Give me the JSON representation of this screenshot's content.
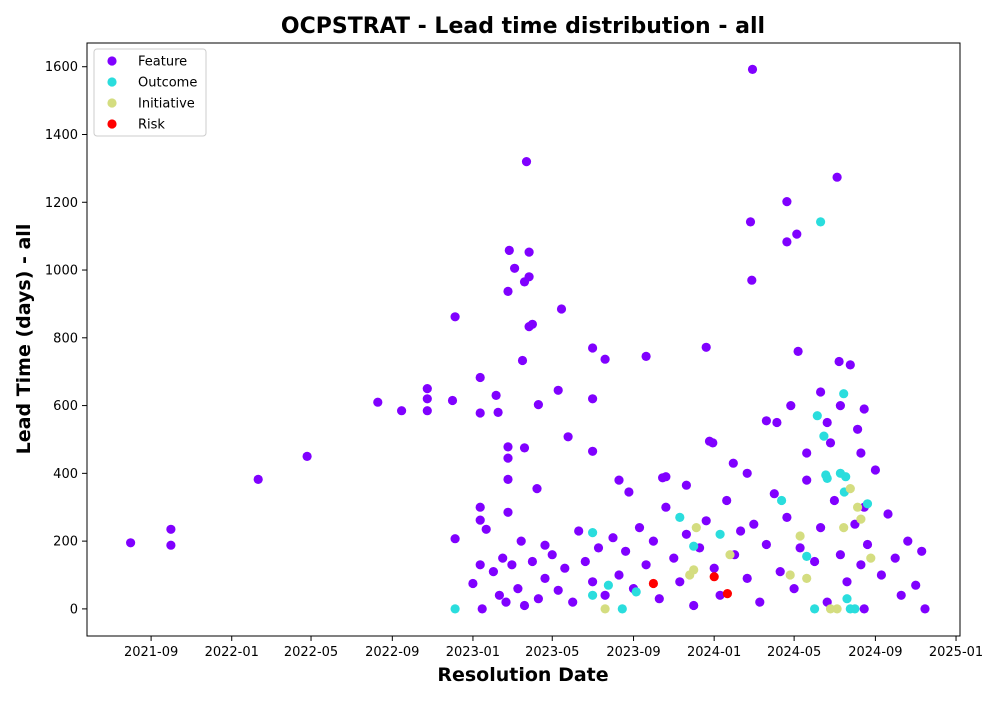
{
  "chart_data": {
    "type": "scatter",
    "title": "OCPSTRAT - Lead time distribution - all",
    "xlabel": "Resolution Date",
    "ylabel": "Lead Time (days) - all",
    "x_ticks": [
      "2021-09",
      "2022-01",
      "2022-05",
      "2022-09",
      "2023-01",
      "2023-05",
      "2023-09",
      "2024-01",
      "2024-05",
      "2024-09",
      "2025-01"
    ],
    "y_ticks": [
      0,
      200,
      400,
      600,
      800,
      1000,
      1200,
      1400,
      1600
    ],
    "xlim": [
      "2021-05-27",
      "2025-01-07"
    ],
    "ylim": [
      -80,
      1670
    ],
    "legend_position": "upper left",
    "series": [
      {
        "name": "Feature",
        "color": "#8000ff",
        "points": [
          [
            "2021-08-01",
            195
          ],
          [
            "2021-10-01",
            235
          ],
          [
            "2021-10-01",
            188
          ],
          [
            "2022-02-10",
            382
          ],
          [
            "2022-04-25",
            450
          ],
          [
            "2022-08-10",
            610
          ],
          [
            "2022-09-15",
            585
          ],
          [
            "2022-10-24",
            650
          ],
          [
            "2022-10-24",
            620
          ],
          [
            "2022-10-24",
            585
          ],
          [
            "2022-12-01",
            615
          ],
          [
            "2022-12-05",
            862
          ],
          [
            "2022-12-05",
            207
          ],
          [
            "2023-01-12",
            683
          ],
          [
            "2023-01-12",
            578
          ],
          [
            "2023-01-12",
            300
          ],
          [
            "2023-01-12",
            262
          ],
          [
            "2023-01-12",
            130
          ],
          [
            "2023-01-21",
            235
          ],
          [
            "2023-02-05",
            630
          ],
          [
            "2023-02-08",
            580
          ],
          [
            "2023-02-23",
            937
          ],
          [
            "2023-02-25",
            1058
          ],
          [
            "2023-02-23",
            478
          ],
          [
            "2023-02-23",
            445
          ],
          [
            "2023-02-23",
            382
          ],
          [
            "2023-02-23",
            285
          ],
          [
            "2023-03-05",
            1005
          ],
          [
            "2023-03-17",
            733
          ],
          [
            "2023-03-20",
            965
          ],
          [
            "2023-03-20",
            475
          ],
          [
            "2023-03-23",
            1320
          ],
          [
            "2023-03-27",
            1053
          ],
          [
            "2023-03-27",
            980
          ],
          [
            "2023-03-27",
            833
          ],
          [
            "2023-04-01",
            840
          ],
          [
            "2023-04-10",
            603
          ],
          [
            "2023-04-08",
            355
          ],
          [
            "2023-04-20",
            188
          ],
          [
            "2023-05-15",
            885
          ],
          [
            "2023-05-10",
            645
          ],
          [
            "2023-05-25",
            508
          ],
          [
            "2023-07-01",
            770
          ],
          [
            "2023-07-01",
            620
          ],
          [
            "2023-07-01",
            465
          ],
          [
            "2023-07-20",
            737
          ],
          [
            "2023-08-10",
            380
          ],
          [
            "2023-08-25",
            345
          ],
          [
            "2023-09-20",
            745
          ],
          [
            "2023-10-15",
            387
          ],
          [
            "2023-10-20",
            390
          ],
          [
            "2023-11-20",
            365
          ],
          [
            "2023-12-20",
            772
          ],
          [
            "2023-12-25",
            495
          ],
          [
            "2023-12-30",
            490
          ],
          [
            "2024-01-30",
            430
          ],
          [
            "2024-02-20",
            400
          ],
          [
            "2024-02-25",
            1142
          ],
          [
            "2024-02-27",
            970
          ],
          [
            "2024-02-28",
            1592
          ],
          [
            "2024-03-20",
            555
          ],
          [
            "2024-04-05",
            550
          ],
          [
            "2024-04-20",
            1202
          ],
          [
            "2024-04-20",
            1083
          ],
          [
            "2024-04-26",
            600
          ],
          [
            "2024-05-05",
            1106
          ],
          [
            "2024-05-07",
            760
          ],
          [
            "2024-05-20",
            460
          ],
          [
            "2024-06-10",
            640
          ],
          [
            "2024-06-20",
            550
          ],
          [
            "2024-06-25",
            490
          ],
          [
            "2024-07-05",
            1274
          ],
          [
            "2024-07-08",
            730
          ],
          [
            "2024-07-10",
            600
          ],
          [
            "2024-07-25",
            720
          ],
          [
            "2024-08-05",
            530
          ],
          [
            "2024-08-10",
            460
          ],
          [
            "2024-08-15",
            590
          ],
          [
            "2024-08-15",
            300
          ],
          [
            "2024-08-15",
            0
          ],
          [
            "2023-01-01",
            75
          ],
          [
            "2023-01-15",
            0
          ],
          [
            "2023-02-01",
            110
          ],
          [
            "2023-02-10",
            40
          ],
          [
            "2023-02-15",
            150
          ],
          [
            "2023-02-20",
            20
          ],
          [
            "2023-03-01",
            130
          ],
          [
            "2023-03-10",
            60
          ],
          [
            "2023-03-15",
            200
          ],
          [
            "2023-03-20",
            10
          ],
          [
            "2023-04-01",
            140
          ],
          [
            "2023-04-10",
            30
          ],
          [
            "2023-04-20",
            90
          ],
          [
            "2023-05-01",
            160
          ],
          [
            "2023-05-10",
            55
          ],
          [
            "2023-05-20",
            120
          ],
          [
            "2023-06-01",
            20
          ],
          [
            "2023-06-10",
            230
          ],
          [
            "2023-06-20",
            140
          ],
          [
            "2023-07-01",
            80
          ],
          [
            "2023-07-10",
            180
          ],
          [
            "2023-07-20",
            40
          ],
          [
            "2023-08-01",
            210
          ],
          [
            "2023-08-10",
            100
          ],
          [
            "2023-08-20",
            170
          ],
          [
            "2023-09-01",
            60
          ],
          [
            "2023-09-10",
            240
          ],
          [
            "2023-09-20",
            130
          ],
          [
            "2023-10-01",
            200
          ],
          [
            "2023-10-10",
            30
          ],
          [
            "2023-10-20",
            300
          ],
          [
            "2023-11-01",
            150
          ],
          [
            "2023-11-10",
            80
          ],
          [
            "2023-11-20",
            220
          ],
          [
            "2023-12-01",
            10
          ],
          [
            "2023-12-10",
            180
          ],
          [
            "2023-12-20",
            260
          ],
          [
            "2024-01-01",
            120
          ],
          [
            "2024-01-10",
            40
          ],
          [
            "2024-01-20",
            320
          ],
          [
            "2024-02-01",
            160
          ],
          [
            "2024-02-10",
            230
          ],
          [
            "2024-02-20",
            90
          ],
          [
            "2024-03-01",
            250
          ],
          [
            "2024-03-10",
            20
          ],
          [
            "2024-03-20",
            190
          ],
          [
            "2024-04-01",
            340
          ],
          [
            "2024-04-10",
            110
          ],
          [
            "2024-04-20",
            270
          ],
          [
            "2024-05-01",
            60
          ],
          [
            "2024-05-10",
            180
          ],
          [
            "2024-05-20",
            380
          ],
          [
            "2024-06-01",
            140
          ],
          [
            "2024-06-10",
            240
          ],
          [
            "2024-06-20",
            20
          ],
          [
            "2024-07-01",
            320
          ],
          [
            "2024-07-10",
            160
          ],
          [
            "2024-07-20",
            80
          ],
          [
            "2024-08-01",
            250
          ],
          [
            "2024-08-10",
            130
          ],
          [
            "2024-08-20",
            190
          ],
          [
            "2024-09-01",
            410
          ],
          [
            "2024-09-10",
            100
          ],
          [
            "2024-09-20",
            280
          ],
          [
            "2024-10-01",
            150
          ],
          [
            "2024-10-10",
            40
          ],
          [
            "2024-10-20",
            200
          ],
          [
            "2024-11-01",
            70
          ],
          [
            "2024-11-10",
            170
          ],
          [
            "2024-11-15",
            0
          ]
        ]
      },
      {
        "name": "Outcome",
        "color": "#2adddd",
        "points": [
          [
            "2022-12-05",
            0
          ],
          [
            "2023-07-01",
            225
          ],
          [
            "2023-07-01",
            40
          ],
          [
            "2023-07-25",
            70
          ],
          [
            "2023-08-15",
            0
          ],
          [
            "2023-09-05",
            50
          ],
          [
            "2023-11-10",
            270
          ],
          [
            "2023-12-01",
            185
          ],
          [
            "2024-01-10",
            220
          ],
          [
            "2024-04-12",
            320
          ],
          [
            "2024-05-20",
            155
          ],
          [
            "2024-06-01",
            0
          ],
          [
            "2024-06-05",
            570
          ],
          [
            "2024-06-10",
            1142
          ],
          [
            "2024-06-15",
            510
          ],
          [
            "2024-06-18",
            395
          ],
          [
            "2024-06-20",
            385
          ],
          [
            "2024-07-10",
            400
          ],
          [
            "2024-07-15",
            635
          ],
          [
            "2024-07-16",
            345
          ],
          [
            "2024-07-18",
            390
          ],
          [
            "2024-07-20",
            30
          ],
          [
            "2024-07-25",
            0
          ],
          [
            "2024-08-01",
            0
          ],
          [
            "2024-08-20",
            310
          ]
        ]
      },
      {
        "name": "Initiative",
        "color": "#d4dd80",
        "points": [
          [
            "2023-07-20",
            0
          ],
          [
            "2023-11-25",
            100
          ],
          [
            "2023-12-01",
            115
          ],
          [
            "2023-12-05",
            240
          ],
          [
            "2024-01-25",
            160
          ],
          [
            "2024-04-25",
            100
          ],
          [
            "2024-05-10",
            215
          ],
          [
            "2024-05-20",
            90
          ],
          [
            "2024-06-25",
            0
          ],
          [
            "2024-07-05",
            0
          ],
          [
            "2024-07-15",
            240
          ],
          [
            "2024-07-25",
            355
          ],
          [
            "2024-08-05",
            300
          ],
          [
            "2024-08-10",
            265
          ],
          [
            "2024-08-25",
            150
          ]
        ]
      },
      {
        "name": "Risk",
        "color": "#ff0000",
        "points": [
          [
            "2023-10-01",
            75
          ],
          [
            "2024-01-01",
            95
          ],
          [
            "2024-01-21",
            45
          ]
        ]
      }
    ]
  }
}
